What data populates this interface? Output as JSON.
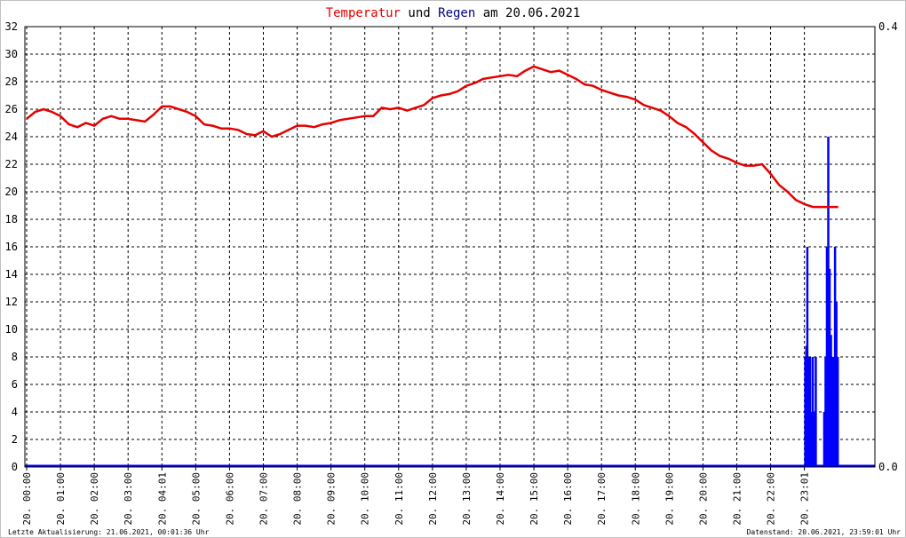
{
  "title": {
    "part1": "Temperatur",
    "part2": " und ",
    "part3": "Regen",
    "part4": " am 20.06.2021"
  },
  "colors": {
    "temperature": "#e60000",
    "rain": "#0000ff",
    "title_blue": "#000080",
    "grid": "#000000",
    "frame": "#c0c0c0"
  },
  "footer": {
    "left": "Letzte Aktualisierung: 21.06.2021, 00:01:36 Uhr",
    "right": "Datenstand: 20.06.2021, 23:59:01 Uhr"
  },
  "chart_data": {
    "type": "line",
    "x_ticks": [
      "20. 00:00",
      "20. 01:00",
      "20. 02:00",
      "20. 03:00",
      "20. 04:01",
      "20. 05:00",
      "20. 06:00",
      "20. 07:00",
      "20. 08:00",
      "20. 09:00",
      "20. 10:00",
      "20. 11:00",
      "20. 12:00",
      "20. 13:00",
      "20. 14:00",
      "20. 15:00",
      "20. 16:00",
      "20. 17:00",
      "20. 18:00",
      "20. 19:00",
      "20. 20:00",
      "20. 21:00",
      "20. 22:00",
      "20. 23:01"
    ],
    "y_left": {
      "min": 0,
      "max": 32,
      "step": 2,
      "ticks": [
        "0",
        "2",
        "4",
        "6",
        "8",
        "10",
        "12",
        "14",
        "16",
        "18",
        "20",
        "22",
        "24",
        "26",
        "28",
        "30",
        "32"
      ]
    },
    "y_right": {
      "min": 0,
      "max": 0.4,
      "ticks": [
        "0.0",
        "0.4"
      ]
    },
    "grid": true,
    "series": [
      {
        "name": "Temperatur",
        "axis": "left",
        "x_hours": [
          0,
          0.25,
          0.5,
          0.75,
          1.0,
          1.25,
          1.5,
          1.75,
          2.0,
          2.25,
          2.5,
          2.75,
          3.0,
          3.25,
          3.5,
          3.75,
          4.0,
          4.25,
          4.5,
          4.75,
          5.0,
          5.25,
          5.5,
          5.75,
          6.0,
          6.25,
          6.5,
          6.75,
          7.0,
          7.25,
          7.5,
          7.75,
          8.0,
          8.25,
          8.5,
          8.75,
          9.0,
          9.25,
          9.5,
          9.75,
          10.0,
          10.25,
          10.5,
          10.75,
          11.0,
          11.25,
          11.5,
          11.75,
          12.0,
          12.25,
          12.5,
          12.75,
          13.0,
          13.25,
          13.5,
          13.75,
          14.0,
          14.25,
          14.5,
          14.75,
          15.0,
          15.25,
          15.5,
          15.75,
          16.0,
          16.25,
          16.5,
          16.75,
          17.0,
          17.25,
          17.5,
          17.75,
          18.0,
          18.25,
          18.5,
          18.75,
          19.0,
          19.25,
          19.5,
          19.75,
          20.0,
          20.25,
          20.5,
          20.75,
          21.0,
          21.25,
          21.5,
          21.75,
          22.0,
          22.25,
          22.5,
          22.75,
          23.0,
          23.25,
          23.5,
          23.75,
          24.0
        ],
        "values": [
          25.3,
          25.8,
          26.0,
          25.8,
          25.5,
          24.9,
          24.7,
          25.0,
          24.8,
          25.3,
          25.5,
          25.3,
          25.3,
          25.2,
          25.1,
          25.6,
          26.2,
          26.2,
          26.0,
          25.8,
          25.5,
          24.9,
          24.8,
          24.6,
          24.6,
          24.5,
          24.2,
          24.1,
          24.4,
          24.0,
          24.2,
          24.5,
          24.8,
          24.8,
          24.7,
          24.9,
          25.0,
          25.2,
          25.3,
          25.4,
          25.5,
          25.5,
          26.1,
          26.0,
          26.1,
          25.9,
          26.1,
          26.3,
          26.8,
          27.0,
          27.1,
          27.3,
          27.7,
          27.9,
          28.2,
          28.3,
          28.4,
          28.5,
          28.4,
          28.8,
          29.1,
          28.9,
          28.7,
          28.8,
          28.5,
          28.2,
          27.8,
          27.7,
          27.4,
          27.2,
          27.0,
          26.9,
          26.7,
          26.3,
          26.1,
          25.9,
          25.5,
          25.0,
          24.7,
          24.2,
          23.6,
          23.0,
          22.6,
          22.4,
          22.1,
          21.9,
          21.9,
          22.0,
          21.3,
          20.5,
          20.0,
          19.4,
          19.1,
          18.9,
          18.9,
          18.9,
          18.9
        ]
      },
      {
        "name": "Regen",
        "axis": "right",
        "bars": [
          {
            "x_hour": 23.02,
            "value": 0.1
          },
          {
            "x_hour": 23.05,
            "value": 0.11
          },
          {
            "x_hour": 23.08,
            "value": 0.2
          },
          {
            "x_hour": 23.12,
            "value": 0.1
          },
          {
            "x_hour": 23.16,
            "value": 0.1
          },
          {
            "x_hour": 23.2,
            "value": 0.05
          },
          {
            "x_hour": 23.24,
            "value": 0.1
          },
          {
            "x_hour": 23.28,
            "value": 0.05
          },
          {
            "x_hour": 23.33,
            "value": 0.1
          },
          {
            "x_hour": 23.58,
            "value": 0.05
          },
          {
            "x_hour": 23.62,
            "value": 0.1
          },
          {
            "x_hour": 23.66,
            "value": 0.2
          },
          {
            "x_hour": 23.7,
            "value": 0.3
          },
          {
            "x_hour": 23.74,
            "value": 0.18
          },
          {
            "x_hour": 23.78,
            "value": 0.12
          },
          {
            "x_hour": 23.82,
            "value": 0.1
          },
          {
            "x_hour": 23.86,
            "value": 0.1
          },
          {
            "x_hour": 23.9,
            "value": 0.2
          },
          {
            "x_hour": 23.94,
            "value": 0.15
          },
          {
            "x_hour": 23.98,
            "value": 0.1
          }
        ]
      }
    ]
  }
}
